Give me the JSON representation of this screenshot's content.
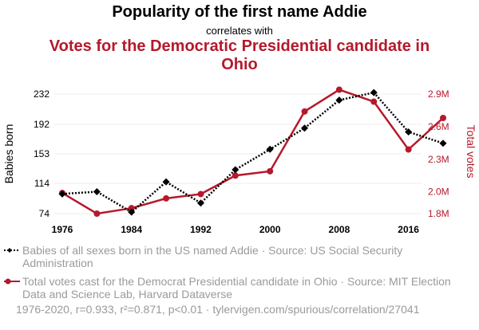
{
  "title": "Popularity of the first name Addie",
  "subtitle": "correlates with",
  "title2": "Votes for the Democratic Presidential candidate in Ohio",
  "legend": {
    "series1": "Babies of all sexes born in the US named Addie · Source: US Social Security Administration",
    "series2": "Total votes cast for the Democrat Presidential candidate in Ohio · Source: MIT Election Data and Science Lab, Harvard Dataverse"
  },
  "footer": "1976-2020, r=0.933, r²=0.871, p<0.01 · tylervigen.com/spurious/correlation/27041",
  "colors": {
    "series1": "#000000",
    "series2": "#b5192b",
    "grid": "#eeeeee"
  },
  "chart_data": {
    "type": "line",
    "ylabel": "Babies born",
    "y2label": "Total votes",
    "xlim": [
      1976,
      2020
    ],
    "ylim": [
      74,
      232
    ],
    "y2lim": [
      1.8,
      2.9
    ],
    "xticks": [
      "1976",
      "1984",
      "1992",
      "2000",
      "2008",
      "2016"
    ],
    "yticks": [
      "74",
      "114",
      "153",
      "192",
      "232"
    ],
    "y2ticks": [
      "1.8M",
      "2.0M",
      "2.3M",
      "2.6M",
      "2.9M"
    ],
    "x": [
      1976,
      1980,
      1984,
      1988,
      1992,
      1996,
      2000,
      2004,
      2008,
      2012,
      2016,
      2020
    ],
    "series": [
      {
        "name": "Babies of all sexes born in the US named Addie",
        "axis": "left",
        "style": "dotted",
        "marker": "diamond",
        "values": [
          100,
          103,
          76,
          116,
          88,
          132,
          159,
          187,
          224,
          234,
          182,
          167
        ]
      },
      {
        "name": "Total votes cast for the Democrat Presidential candidate in Ohio",
        "axis": "right",
        "style": "solid",
        "marker": "circle",
        "x": [
          1976,
          1980,
          1984,
          1988,
          1992,
          1996,
          2000,
          2004,
          2008,
          2012,
          2016,
          2020
        ],
        "values": [
          1.99,
          1.8,
          1.85,
          1.94,
          1.98,
          2.15,
          2.19,
          2.74,
          2.94,
          2.83,
          2.39,
          2.68
        ]
      }
    ]
  }
}
